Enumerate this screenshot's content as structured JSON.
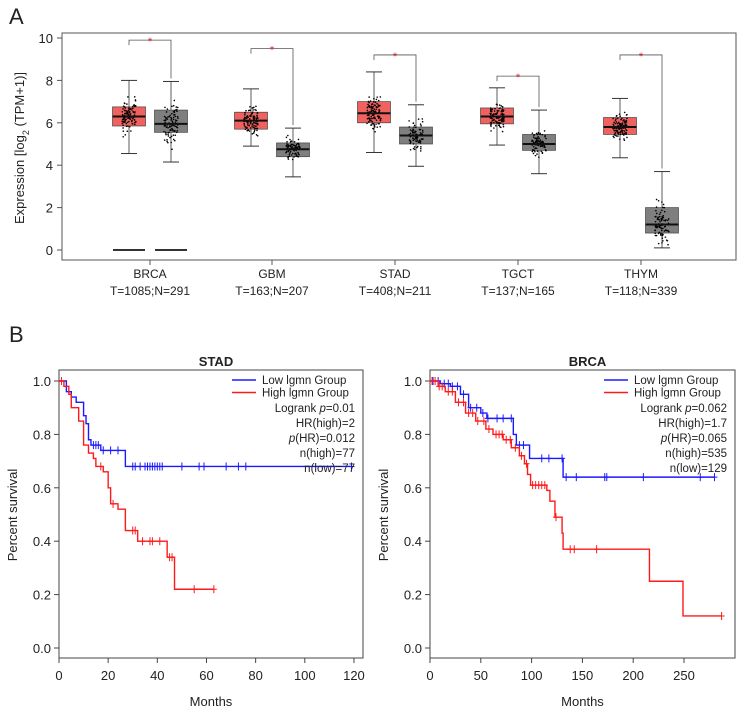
{
  "panels": {
    "a": "A",
    "b": "B"
  },
  "chart_data": [
    {
      "type": "box",
      "ylabel": "Expression [log2 (TPM+1)]",
      "ylabel_parts": {
        "pre": "Expression [log",
        "sub": "2",
        "post": " (TPM+1)]"
      },
      "ylim": [
        0,
        10
      ],
      "yticks": [
        "0",
        "2",
        "4",
        "6",
        "8",
        "10"
      ],
      "colors": {
        "tumor": "#f0625f",
        "normal": "#7f7f7f",
        "significance": "#e8202a"
      },
      "significance_marker": "*",
      "categories": [
        {
          "name": "BRCA",
          "counts": "T=1085;N=291",
          "tumor": {
            "min": 4.55,
            "q1": 5.85,
            "median": 6.3,
            "q3": 6.75,
            "max": 8.0
          },
          "normal": {
            "min": 4.15,
            "q1": 5.55,
            "median": 5.95,
            "q3": 6.6,
            "max": 7.95
          },
          "significant": true,
          "bracket_level": 9.9
        },
        {
          "name": "GBM",
          "counts": "T=163;N=207",
          "tumor": {
            "min": 4.9,
            "q1": 5.7,
            "median": 6.1,
            "q3": 6.5,
            "max": 7.6
          },
          "normal": {
            "min": 3.45,
            "q1": 4.4,
            "median": 4.75,
            "q3": 5.05,
            "max": 5.75
          },
          "significant": true,
          "bracket_level": 9.5
        },
        {
          "name": "STAD",
          "counts": "T=408;N=211",
          "tumor": {
            "min": 4.6,
            "q1": 6.0,
            "median": 6.45,
            "q3": 7.0,
            "max": 8.4
          },
          "normal": {
            "min": 3.95,
            "q1": 5.0,
            "median": 5.4,
            "q3": 5.8,
            "max": 6.85
          },
          "significant": true,
          "bracket_level": 9.2
        },
        {
          "name": "TGCT",
          "counts": "T=137;N=165",
          "tumor": {
            "min": 4.95,
            "q1": 5.95,
            "median": 6.3,
            "q3": 6.7,
            "max": 7.65
          },
          "normal": {
            "min": 3.6,
            "q1": 4.7,
            "median": 5.0,
            "q3": 5.45,
            "max": 6.6
          },
          "significant": true,
          "bracket_level": 8.2
        },
        {
          "name": "THYM",
          "counts": "T=118;N=339",
          "tumor": {
            "min": 4.35,
            "q1": 5.45,
            "median": 5.8,
            "q3": 6.25,
            "max": 7.15
          },
          "normal": {
            "min": 0.1,
            "q1": 0.8,
            "median": 1.2,
            "q3": 2.0,
            "max": 3.7
          },
          "significant": true,
          "bracket_level": 9.2
        }
      ]
    },
    {
      "type": "line",
      "title": "STAD",
      "xlabel": "Months",
      "ylabel": "Percent survival",
      "xlim": [
        0,
        120
      ],
      "ylim": [
        0,
        1
      ],
      "xticks": [
        "0",
        "20",
        "40",
        "60",
        "80",
        "100",
        "120"
      ],
      "yticks": [
        "0.0",
        "0.2",
        "0.4",
        "0.6",
        "0.8",
        "1.0"
      ],
      "legend": [
        {
          "label": "Low lgmn Group",
          "color": "#1a1aff"
        },
        {
          "label": "High lgmn Group",
          "color": "#ff1a1a"
        }
      ],
      "stats": [
        {
          "pre": "Logrank ",
          "it": "p",
          "post": "=0.01"
        },
        {
          "pre": "HR(high)=2",
          "it": "",
          "post": ""
        },
        {
          "pre": "",
          "it": "p",
          "post": "(HR)=0.012"
        },
        {
          "pre": "n(high)=77",
          "it": "",
          "post": ""
        },
        {
          "pre": "n(low)=77",
          "it": "",
          "post": ""
        }
      ],
      "series": [
        {
          "name": "Low lgmn Group",
          "color": "#1a1aff",
          "steps": [
            [
              0,
              1.0
            ],
            [
              3,
              0.96
            ],
            [
              5,
              0.94
            ],
            [
              7,
              0.92
            ],
            [
              10,
              0.87
            ],
            [
              11,
              0.84
            ],
            [
              12,
              0.78
            ],
            [
              13,
              0.76
            ],
            [
              17,
              0.74
            ],
            [
              27,
              0.68
            ],
            [
              119,
              0.68
            ]
          ],
          "censored": [
            14,
            15,
            16,
            18,
            21,
            24,
            30,
            31,
            33,
            35,
            36,
            37,
            38,
            39,
            40,
            41,
            42,
            50,
            57,
            59,
            68,
            73,
            76,
            119
          ]
        },
        {
          "name": "High lgmn Group",
          "color": "#ff1a1a",
          "steps": [
            [
              0,
              1.0
            ],
            [
              2,
              0.98
            ],
            [
              4,
              0.95
            ],
            [
              5,
              0.9
            ],
            [
              8,
              0.85
            ],
            [
              10,
              0.76
            ],
            [
              12,
              0.73
            ],
            [
              14,
              0.71
            ],
            [
              15,
              0.68
            ],
            [
              18,
              0.66
            ],
            [
              20,
              0.6
            ],
            [
              21,
              0.54
            ],
            [
              24,
              0.52
            ],
            [
              27,
              0.44
            ],
            [
              32,
              0.4
            ],
            [
              44,
              0.34
            ],
            [
              47,
              0.22
            ],
            [
              63,
              0.22
            ]
          ],
          "censored": [
            1,
            17,
            22,
            30,
            31,
            34,
            37,
            38,
            41,
            45,
            46,
            55,
            63
          ]
        }
      ]
    },
    {
      "type": "line",
      "title": "BRCA",
      "xlabel": "Months",
      "ylabel": "Percent survival",
      "xlim": [
        0,
        290
      ],
      "ylim": [
        0,
        1
      ],
      "xticks": [
        "0",
        "50",
        "100",
        "150",
        "200",
        "250"
      ],
      "yticks": [
        "0.0",
        "0.2",
        "0.4",
        "0.6",
        "0.8",
        "1.0"
      ],
      "legend": [
        {
          "label": "Low lgmn Group",
          "color": "#1a1aff"
        },
        {
          "label": "High lgmn Group",
          "color": "#ff1a1a"
        }
      ],
      "stats": [
        {
          "pre": "Logrank ",
          "it": "p",
          "post": "=0.062"
        },
        {
          "pre": "HR(high)=1.7",
          "it": "",
          "post": ""
        },
        {
          "pre": "",
          "it": "p",
          "post": "(HR)=0.065"
        },
        {
          "pre": "n(high)=535",
          "it": "",
          "post": ""
        },
        {
          "pre": "n(low)=129",
          "it": "",
          "post": ""
        }
      ],
      "series": [
        {
          "name": "Low lgmn Group",
          "color": "#1a1aff",
          "steps": [
            [
              0,
              1.0
            ],
            [
              10,
              0.99
            ],
            [
              20,
              0.98
            ],
            [
              30,
              0.95
            ],
            [
              38,
              0.9
            ],
            [
              50,
              0.88
            ],
            [
              56,
              0.86
            ],
            [
              82,
              0.8
            ],
            [
              85,
              0.76
            ],
            [
              98,
              0.71
            ],
            [
              131,
              0.64
            ],
            [
              280,
              0.64
            ]
          ],
          "censored": [
            3,
            8,
            14,
            18,
            22,
            27,
            33,
            40,
            46,
            52,
            57,
            66,
            72,
            80,
            88,
            92,
            110,
            117,
            130,
            134,
            144,
            172,
            174,
            210,
            266,
            280
          ]
        },
        {
          "name": "High lgmn Group",
          "color": "#ff1a1a",
          "steps": [
            [
              0,
              1.0
            ],
            [
              8,
              0.98
            ],
            [
              15,
              0.96
            ],
            [
              25,
              0.92
            ],
            [
              35,
              0.88
            ],
            [
              45,
              0.85
            ],
            [
              55,
              0.82
            ],
            [
              62,
              0.8
            ],
            [
              72,
              0.78
            ],
            [
              80,
              0.75
            ],
            [
              88,
              0.72
            ],
            [
              93,
              0.69
            ],
            [
              96,
              0.65
            ],
            [
              99,
              0.61
            ],
            [
              115,
              0.59
            ],
            [
              118,
              0.55
            ],
            [
              123,
              0.49
            ],
            [
              130,
              0.43
            ],
            [
              131,
              0.37
            ],
            [
              216,
              0.37
            ],
            [
              216,
              0.25
            ],
            [
              249,
              0.25
            ],
            [
              249,
              0.12
            ],
            [
              287,
              0.12
            ]
          ],
          "censored": [
            2,
            5,
            9,
            12,
            18,
            22,
            28,
            33,
            38,
            42,
            47,
            53,
            58,
            65,
            68,
            71,
            75,
            79,
            84,
            90,
            95,
            101,
            104,
            107,
            110,
            113,
            124,
            138,
            142,
            164,
            287
          ]
        }
      ]
    }
  ]
}
